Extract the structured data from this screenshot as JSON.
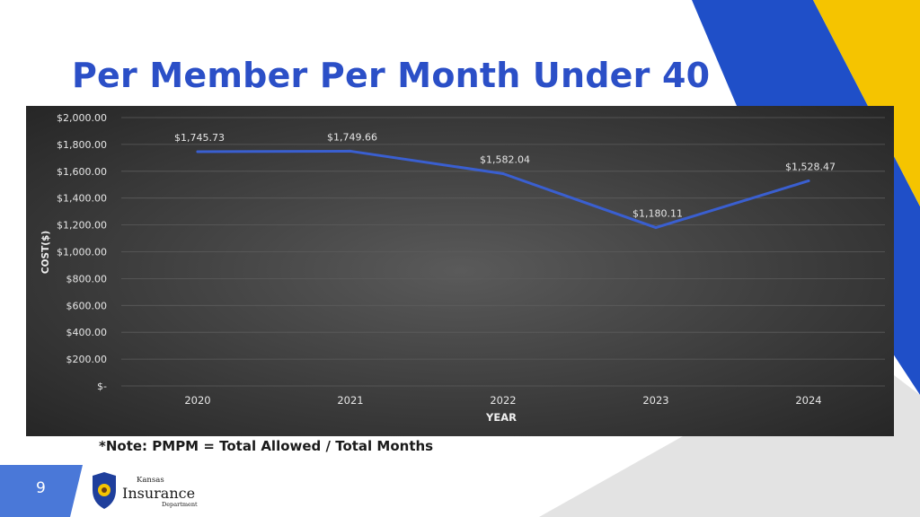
{
  "slide": {
    "title": "Per Member Per Month Under 40",
    "note": "*Note: PMPM = Total Allowed / Total Months",
    "page_number": "9"
  },
  "logo": {
    "line1": "Kansas",
    "line2": "Insurance",
    "line3": "Department"
  },
  "colors": {
    "title": "#2b4fc7",
    "line": "#3a5fd0",
    "accent_blue": "#1f4fc8",
    "accent_yellow": "#f5c400",
    "page_badge": "#4a78d8"
  },
  "chart_data": {
    "type": "line",
    "title": "",
    "xlabel": "YEAR",
    "ylabel": "COST($)",
    "categories": [
      "2020",
      "2021",
      "2022",
      "2023",
      "2024"
    ],
    "series": [
      {
        "name": "PMPM",
        "values": [
          1745.73,
          1749.66,
          1582.04,
          1180.11,
          1528.47
        ]
      }
    ],
    "data_labels": [
      "$1,745.73",
      "$1,749.66",
      "$1,582.04",
      "$1,180.11",
      "$1,528.47"
    ],
    "ylim": [
      0,
      2000
    ],
    "yticks": [
      0,
      200,
      400,
      600,
      800,
      1000,
      1200,
      1400,
      1600,
      1800,
      2000
    ],
    "ytick_labels": [
      "$-",
      "$200.00",
      "$400.00",
      "$600.00",
      "$800.00",
      "$1,000.00",
      "$1,200.00",
      "$1,400.00",
      "$1,600.00",
      "$1,800.00",
      "$2,000.00"
    ],
    "grid": true
  }
}
